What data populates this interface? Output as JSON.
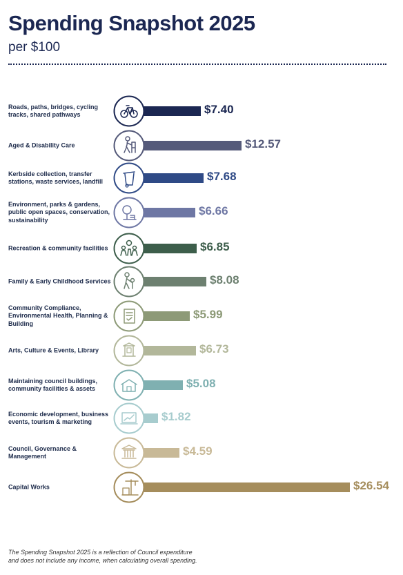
{
  "header": {
    "title": "Spending Snapshot 2025",
    "subtitle": "per $100"
  },
  "chart_data": {
    "type": "bar",
    "orientation": "horizontal",
    "categories": [
      "Roads, paths, bridges, cycling tracks, shared pathways",
      "Aged & Disability Care",
      "Kerbside collection, transfer stations, waste services, landfill",
      "Environment, parks & gardens, public open spaces, conservation, sustainability",
      "Recreation & community facilities",
      "Family & Early Childhood Services",
      "Community Compliance, Environmental Health, Planning & Building",
      "Arts, Culture & Events, Library",
      "Maintaining council buildings, community facilities & assets",
      "Economic development, business events, tourism & marketing",
      "Council, Governance & Management",
      "Capital Works"
    ],
    "values": [
      7.4,
      12.57,
      7.68,
      6.66,
      6.85,
      8.08,
      5.99,
      6.73,
      5.08,
      1.82,
      4.59,
      26.54
    ],
    "value_labels": [
      "$7.40",
      "$12.57",
      "$7.68",
      "$6.66",
      "$6.85",
      "$8.08",
      "$5.99",
      "$6.73",
      "$5.08",
      "$1.82",
      "$4.59",
      "$26.54"
    ],
    "colors": [
      "#1b2752",
      "#555a7a",
      "#2f4a86",
      "#6e77a4",
      "#3d5e4b",
      "#6d8070",
      "#8d9a77",
      "#b2b79a",
      "#7fb0b1",
      "#a7ccce",
      "#c8b997",
      "#a58d5c"
    ],
    "icons": [
      "bicycle-icon",
      "aged-care-walker-icon",
      "waste-bin-icon",
      "tree-park-icon",
      "community-people-icon",
      "family-child-icon",
      "compliance-document-icon",
      "arts-museum-icon",
      "building-maintenance-icon",
      "economic-chart-icon",
      "government-building-icon",
      "construction-crane-icon"
    ],
    "xlim": [
      0,
      26.54
    ],
    "legend": "none",
    "grid": false
  },
  "footnote": {
    "line1": "The Spending Snapshot 2025 is a reflection of Council expenditure",
    "line2": "and does not include any income, when calculating overall spending."
  }
}
